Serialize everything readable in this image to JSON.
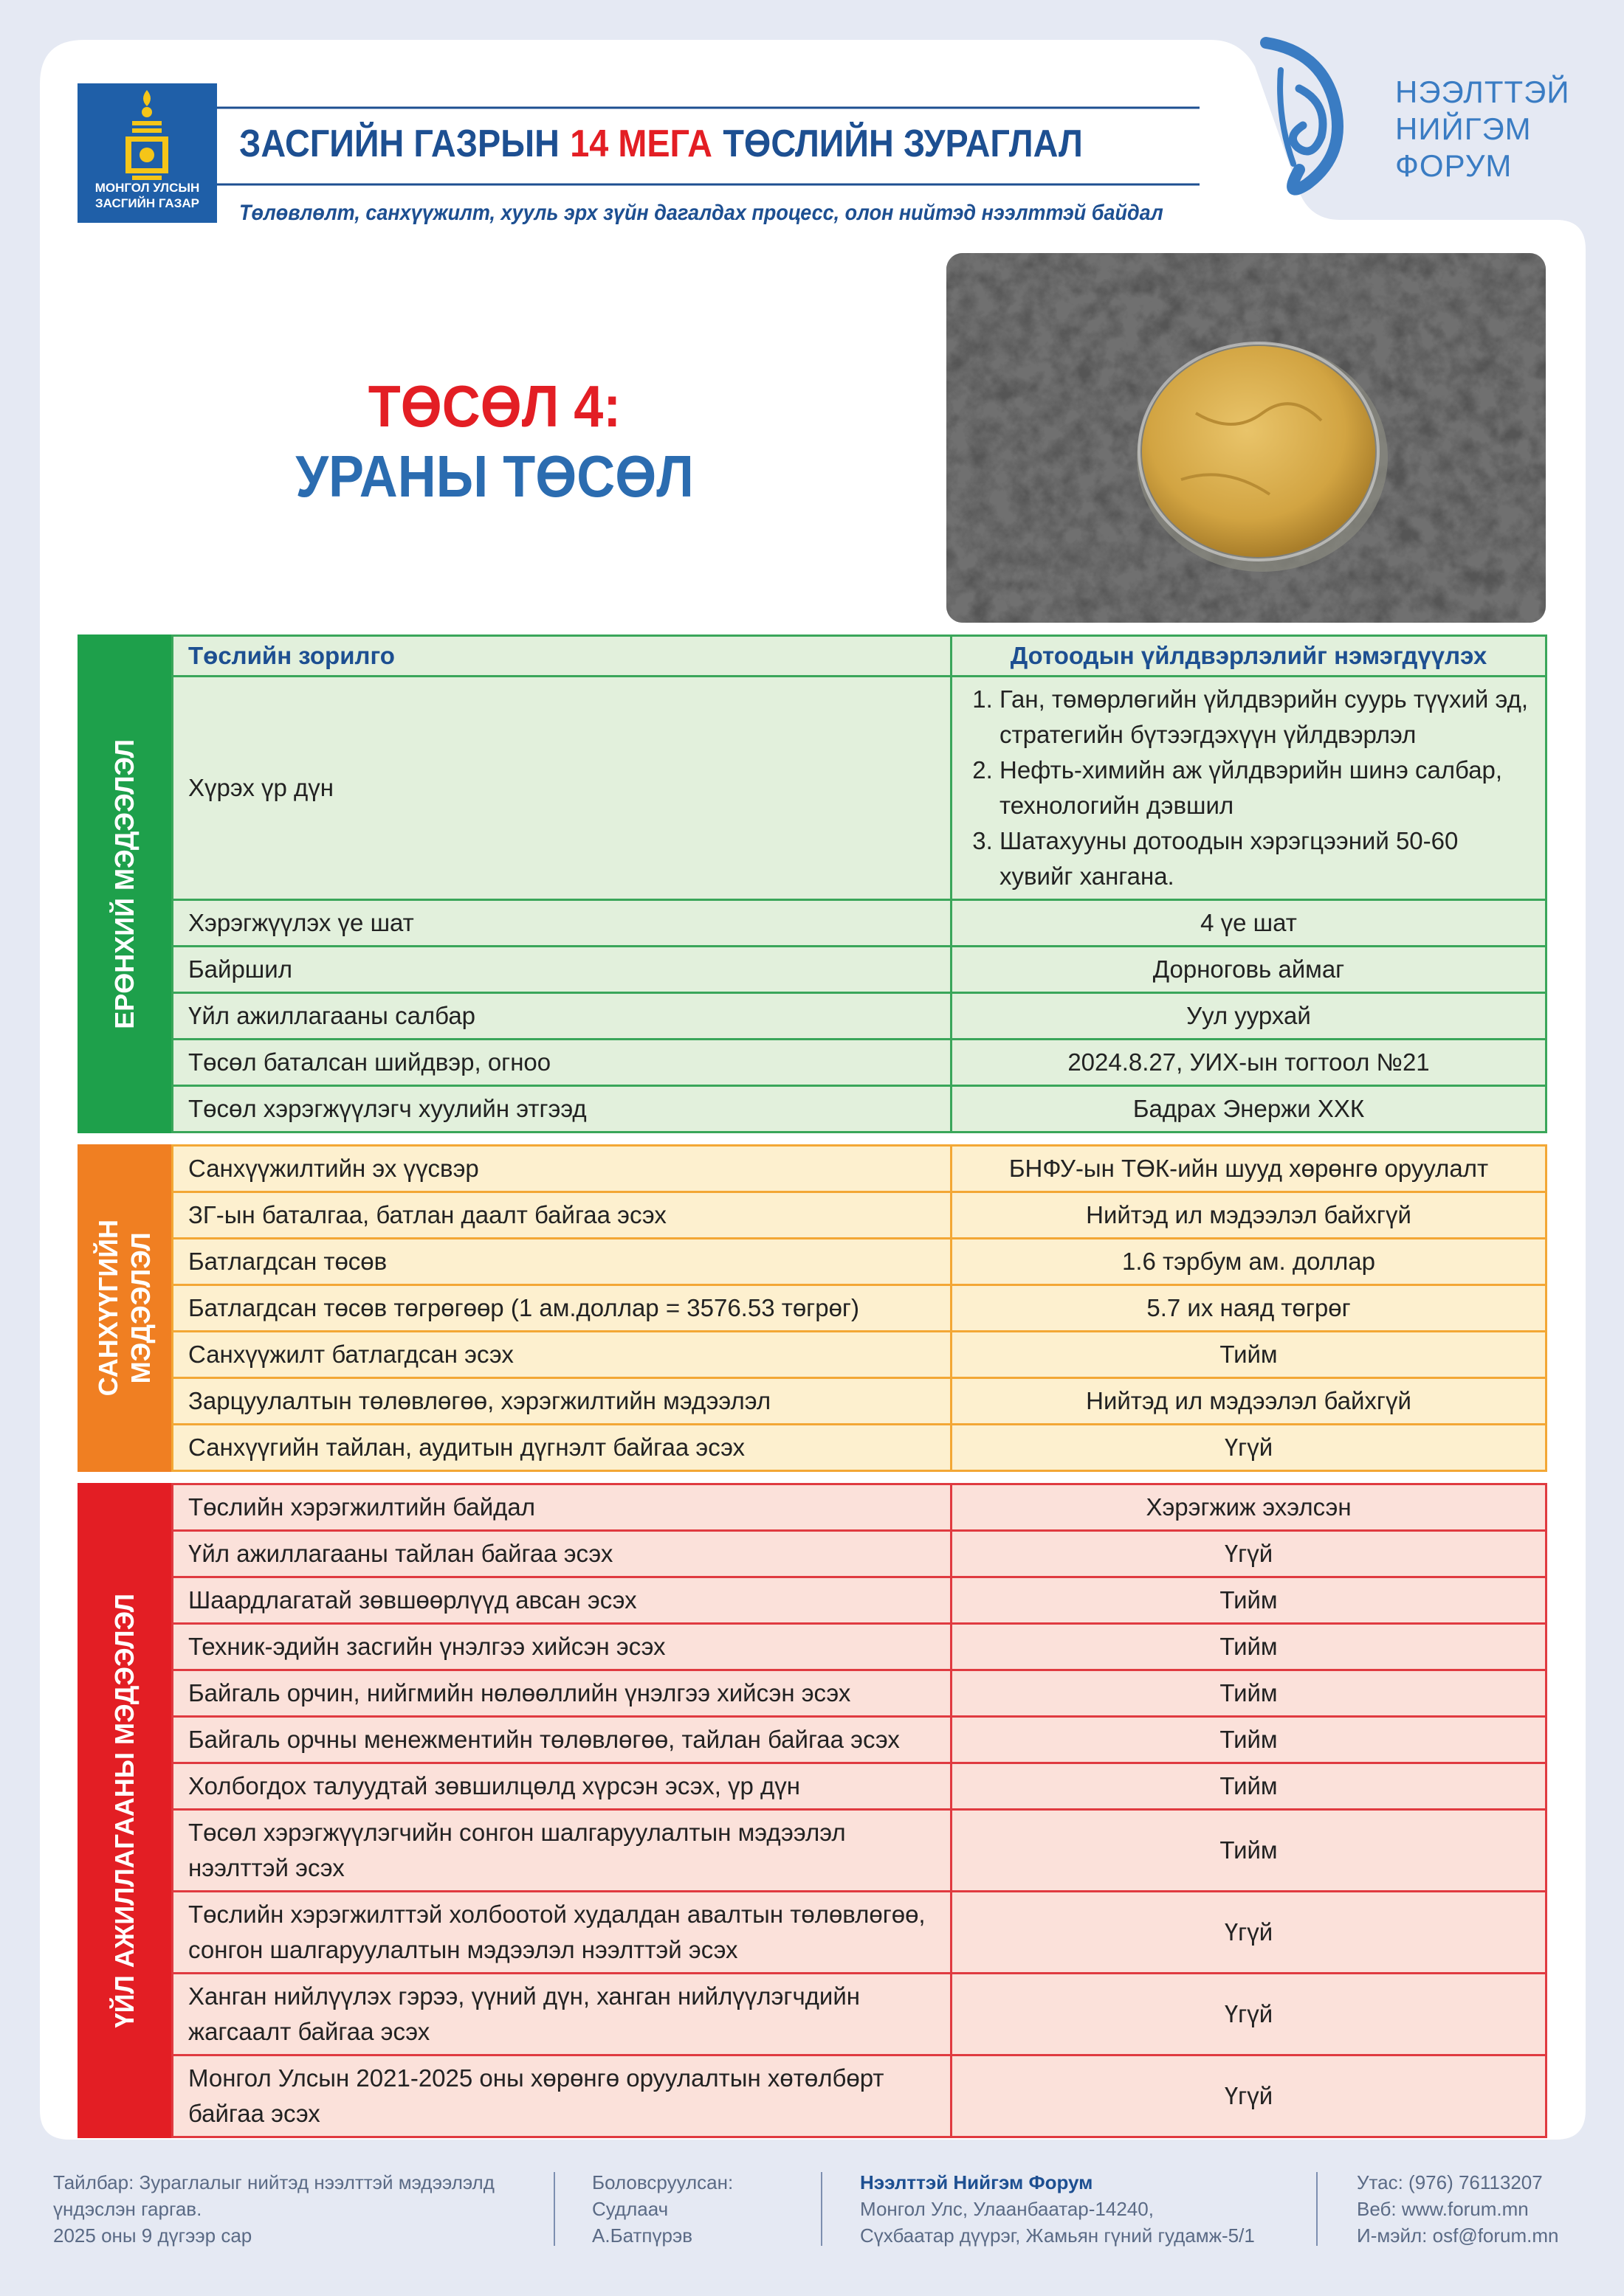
{
  "header": {
    "emblem_text": [
      "МОНГОЛ УЛСЫН",
      "ЗАСГИЙН ГАЗАР"
    ],
    "title": [
      "ЗАСГИЙН ГАЗРЫН",
      "14 МЕГА",
      "ТӨСЛИЙН ЗУРАГЛАЛ"
    ],
    "subtitle": "Төлөвлөлт, санхүүжилт, хууль эрх зүйн дагалдах процесс, олон нийтэд нээлттэй байдал",
    "forum_logo": [
      "НЭЭЛТТЭЙ",
      "НИЙГЭМ",
      "ФОРУМ"
    ]
  },
  "project": {
    "number": "ТӨСӨЛ 4:",
    "name": "УРАНЫ ТӨСӨЛ"
  },
  "sections": [
    {
      "label": [
        "ЕРӨНХИЙ МЭДЭЭЛЭЛ"
      ],
      "color": "green",
      "header": {
        "label": "Төслийн зорилго",
        "value": "Дотоодын үйлдвэрлэлийг нэмэгдүүлэх"
      },
      "rows": [
        {
          "label": "Хүрэх үр дүн",
          "items": [
            "Ган, төмөрлөгийн үйлдвэрийн суурь түүхий эд, стратегийн бүтээгдэхүүн үйлдвэрлэл",
            "Нефть-химийн аж үйлдвэрийн шинэ салбар, технологийн дэвшил",
            "Шатахууны дотоодын хэрэгцээний 50-60 хувийг хангана."
          ]
        },
        {
          "label": "Хэрэгжүүлэх үе шат",
          "value": "4 үе шат"
        },
        {
          "label": "Байршил",
          "value": "Дорноговь аймаг"
        },
        {
          "label": "Үйл ажиллагааны салбар",
          "value": "Уул уурхай"
        },
        {
          "label": "Төсөл баталсан шийдвэр, огноо",
          "value": "2024.8.27, УИХ-ын тогтоол №21"
        },
        {
          "label": "Төсөл хэрэгжүүлэгч хуулийн этгээд",
          "value": "Бадрах Энержи ХХК"
        }
      ]
    },
    {
      "label": [
        "САНХҮҮГИЙН",
        "МЭДЭЭЛЭЛ"
      ],
      "color": "orange",
      "rows": [
        {
          "label": "Санхүүжилтийн эх үүсвэр",
          "value": "БНФУ-ын ТӨК-ийн шууд хөрөнгө оруулалт"
        },
        {
          "label": "ЗГ-ын баталгаа, батлан даалт байгаа эсэх",
          "value": "Нийтэд ил мэдээлэл байхгүй"
        },
        {
          "label": "Батлагдсан төсөв",
          "value": "1.6 тэрбум ам. доллар"
        },
        {
          "label": "Батлагдсан төсөв төгрөгөөр (1 ам.доллар = 3576.53 төгрөг)",
          "value": "5.7 их наяд төгрөг"
        },
        {
          "label": "Санхүүжилт батлагдсан эсэх",
          "value": "Тийм"
        },
        {
          "label": "Зарцуулалтын төлөвлөгөө, хэрэгжилтийн мэдээлэл",
          "value": "Нийтэд ил мэдээлэл байхгүй"
        },
        {
          "label": "Санхүүгийн тайлан, аудитын дүгнэлт байгаа эсэх",
          "value": "Үгүй"
        }
      ]
    },
    {
      "label": [
        "ҮЙЛ АЖИЛЛАГААНЫ МЭДЭЭЛЭЛ"
      ],
      "color": "red",
      "rows": [
        {
          "label": "Төслийн хэрэгжилтийн байдал",
          "value": "Хэрэгжиж эхэлсэн"
        },
        {
          "label": "Үйл ажиллагааны тайлан байгаа эсэх",
          "value": "Үгүй"
        },
        {
          "label": "Шаардлагатай зөвшөөрлүүд авсан эсэх",
          "value": "Тийм"
        },
        {
          "label": "Техник-эдийн засгийн үнэлгээ хийсэн эсэх",
          "value": "Тийм"
        },
        {
          "label": "Байгаль орчин, нийгмийн нөлөөллийн үнэлгээ хийсэн эсэх",
          "value": "Тийм"
        },
        {
          "label": "Байгаль орчны менежментийн төлөвлөгөө, тайлан байгаа эсэх",
          "value": "Тийм"
        },
        {
          "label": "Холбогдох талуудтай зөвшилцөлд хүрсэн эсэх, үр дүн",
          "value": "Тийм"
        },
        {
          "label": "Төсөл хэрэгжүүлэгчийн сонгон шалгаруулалтын мэдээлэл нээлттэй эсэх",
          "value": "Тийм"
        },
        {
          "label": "Төслийн хэрэгжилттэй холбоотой худалдан авалтын төлөвлөгөө, сонгон шалгаруулалтын мэдээлэл нээлттэй эсэх",
          "value": "Үгүй"
        },
        {
          "label": "Ханган нийлүүлэх гэрээ, үүний дүн, ханган нийлүүлэгчдийн жагсаалт байгаа эсэх",
          "value": "Үгүй"
        },
        {
          "label": "Монгол Улсын 2021-2025 оны хөрөнгө оруулалтын хөтөлбөрт байгаа эсэх",
          "value": "Үгүй"
        }
      ]
    }
  ],
  "footer": {
    "note": [
      "Тайлбар: Зураглалыг нийтэд нээлттэй мэдээлэлд",
      "үндэслэн гаргав.",
      "2025 оны 9 дүгээр сар"
    ],
    "prepared": [
      "Боловсруулсан:",
      "Судлаач",
      "А.Батпүрэв"
    ],
    "org_name": "Нээлттэй Нийгэм Форум",
    "org_address": [
      "Монгол Улс, Улаанбаатар-14240,",
      "Сүхбаатар дүүрэг, Жамьян гүний гудамж-5/1"
    ],
    "contacts": [
      "Утас: (976) 76113207",
      "Веб: www.forum.mn",
      "И-мэйл: osf@forum.mn"
    ]
  }
}
